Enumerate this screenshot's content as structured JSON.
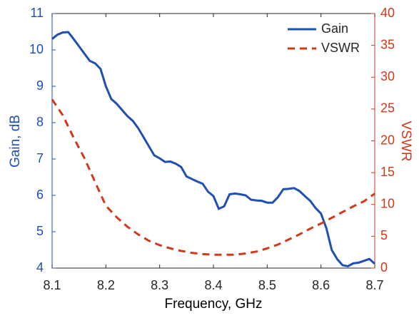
{
  "chart_data": {
    "type": "line",
    "xlabel": "Frequency, GHz",
    "ylabel": "Gain, dB",
    "y2label": "VSWR",
    "xlim": [
      8.1,
      8.7
    ],
    "xticks": [
      8.1,
      8.2,
      8.3,
      8.4,
      8.5,
      8.6,
      8.7
    ],
    "ylim": [
      4,
      11
    ],
    "yticks": [
      4,
      5,
      6,
      7,
      8,
      9,
      10,
      11
    ],
    "y2lim": [
      0,
      40
    ],
    "y2ticks": [
      0,
      5,
      10,
      15,
      20,
      25,
      30,
      35,
      40
    ],
    "legend": "top-right",
    "series": [
      {
        "name": "Gain",
        "color": "#1f4fb4",
        "dash": "solid",
        "x": [
          8.1,
          8.11,
          8.12,
          8.13,
          8.14,
          8.15,
          8.16,
          8.17,
          8.18,
          8.19,
          8.2,
          8.21,
          8.22,
          8.23,
          8.24,
          8.25,
          8.26,
          8.27,
          8.28,
          8.29,
          8.3,
          8.31,
          8.32,
          8.33,
          8.34,
          8.35,
          8.36,
          8.37,
          8.38,
          8.39,
          8.4,
          8.41,
          8.42,
          8.43,
          8.44,
          8.45,
          8.46,
          8.47,
          8.48,
          8.49,
          8.5,
          8.51,
          8.52,
          8.53,
          8.54,
          8.55,
          8.56,
          8.57,
          8.58,
          8.59,
          8.6,
          8.61,
          8.62,
          8.63,
          8.64,
          8.65,
          8.66,
          8.67,
          8.68,
          8.69,
          8.7
        ],
        "values": [
          10.3,
          10.42,
          10.48,
          10.49,
          10.3,
          10.1,
          9.9,
          9.7,
          9.63,
          9.48,
          9.0,
          8.65,
          8.52,
          8.35,
          8.18,
          8.05,
          7.85,
          7.6,
          7.35,
          7.1,
          7.02,
          6.92,
          6.93,
          6.87,
          6.78,
          6.52,
          6.45,
          6.38,
          6.32,
          6.1,
          5.98,
          5.63,
          5.7,
          6.03,
          6.05,
          6.03,
          6.0,
          5.88,
          5.86,
          5.85,
          5.8,
          5.8,
          5.95,
          6.17,
          6.18,
          6.2,
          6.12,
          5.98,
          5.85,
          5.65,
          5.5,
          5.1,
          4.5,
          4.25,
          4.08,
          4.05,
          4.13,
          4.15,
          4.2,
          4.25,
          4.12
        ]
      },
      {
        "name": "VSWR",
        "color": "#d2391b",
        "dash": "dashed",
        "axis": "y2",
        "x": [
          8.1,
          8.12,
          8.14,
          8.16,
          8.18,
          8.2,
          8.22,
          8.24,
          8.26,
          8.28,
          8.3,
          8.32,
          8.34,
          8.36,
          8.38,
          8.4,
          8.42,
          8.44,
          8.46,
          8.48,
          8.5,
          8.52,
          8.54,
          8.56,
          8.58,
          8.6,
          8.62,
          8.64,
          8.66,
          8.68,
          8.7
        ],
        "values": [
          26.5,
          24,
          20.5,
          17.3,
          13.5,
          9.8,
          8,
          6.5,
          5.3,
          4.3,
          3.6,
          3.1,
          2.7,
          2.4,
          2.2,
          2.1,
          2.1,
          2.1,
          2.3,
          2.6,
          3.1,
          3.7,
          4.5,
          5.3,
          6.2,
          7.0,
          7.9,
          8.8,
          9.7,
          10.5,
          11.7
        ]
      }
    ]
  }
}
